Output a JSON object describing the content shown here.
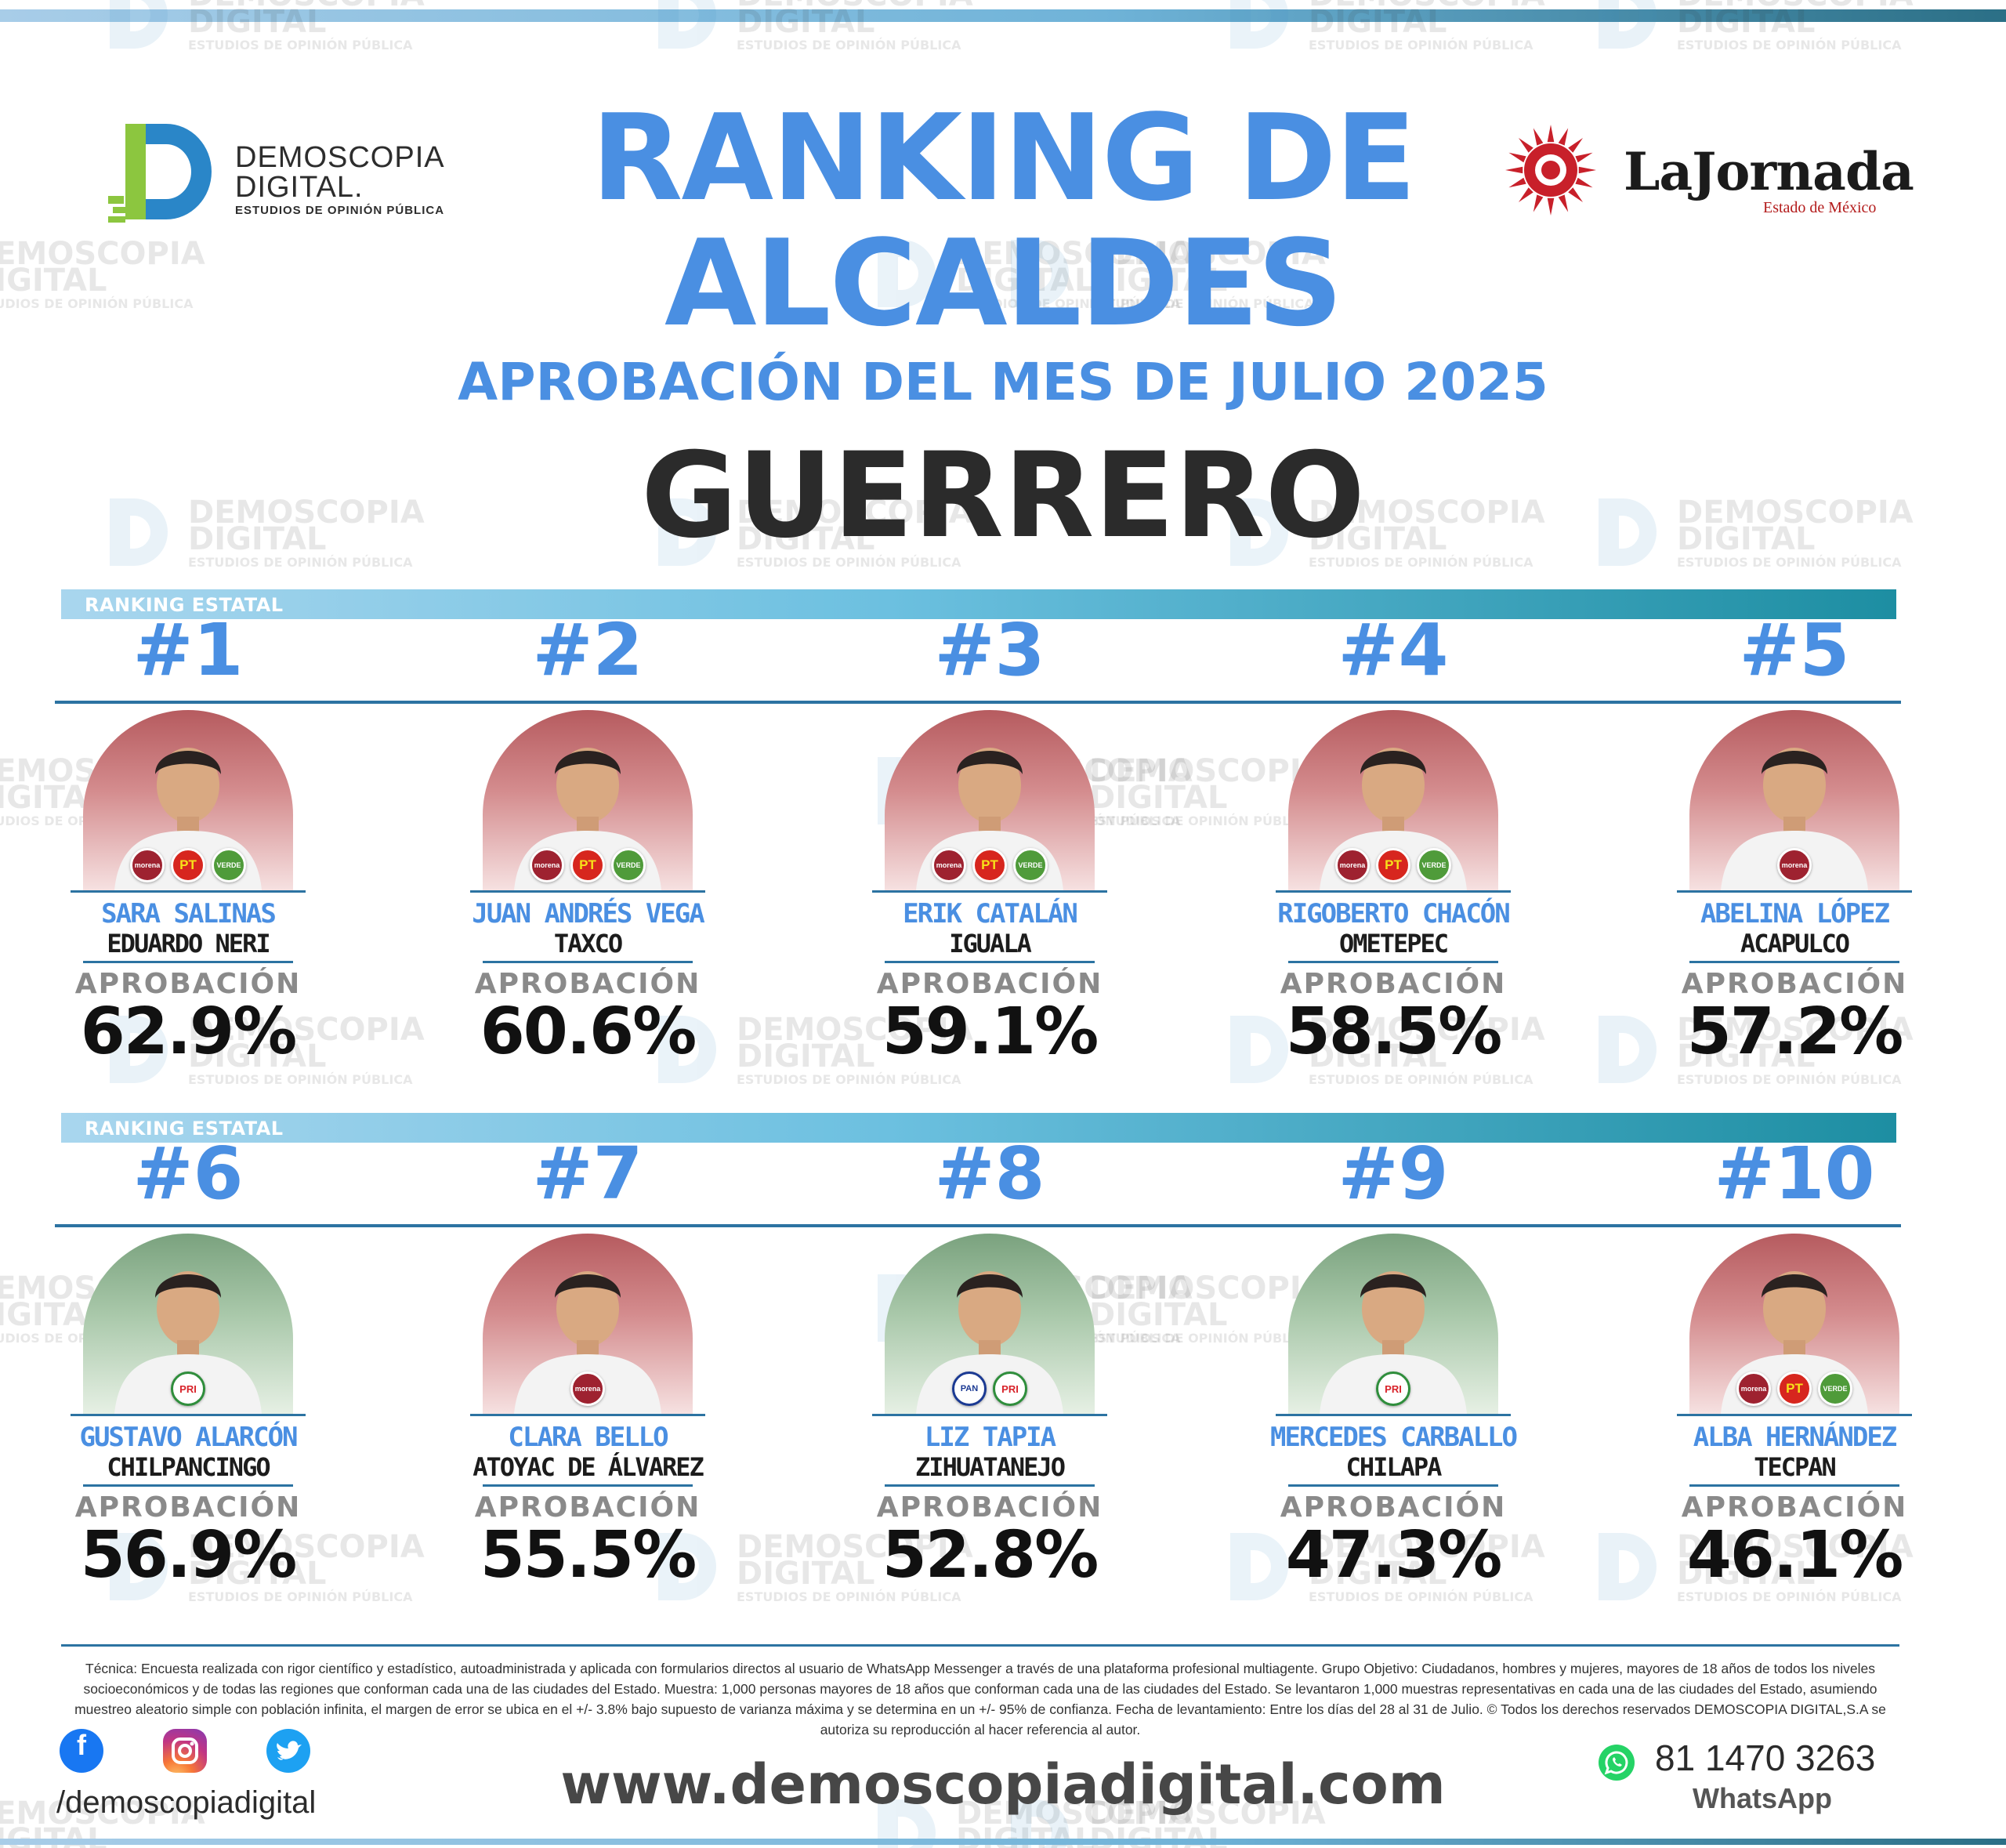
{
  "header": {
    "title_line1": "RANKING DE",
    "title_line2": "ALCALDES",
    "subtitle": "APROBACIÓN DEL MES DE JULIO 2025",
    "state": "GUERRERO"
  },
  "logos": {
    "demoscopia_line1": "DEMOSCOPIA",
    "demoscopia_line2": "DIGITAL.",
    "demoscopia_tagline": "ESTUDIOS DE OPINIÓN PÚBLICA",
    "jornada_name": "LaJornada",
    "jornada_sub": "Estado de México"
  },
  "watermark": {
    "line1": "DEMOSCOPIA",
    "line2": "DIGITAL",
    "line3": "ESTUDIOS DE OPINIÓN PÚBLICA"
  },
  "sections": [
    {
      "label": "RANKING ESTATAL"
    },
    {
      "label": "RANKING ESTATAL"
    }
  ],
  "approval_label": "APROBACIÓN",
  "mayors": [
    {
      "rank": "#1",
      "name": "SARA SALINAS",
      "city": "EDUARDO NERI",
      "approval": "62.9%",
      "approval_value": 62.9,
      "bg": "red",
      "parties": [
        "morena",
        "PT",
        "VERDE"
      ]
    },
    {
      "rank": "#2",
      "name": "JUAN ANDRÉS VEGA",
      "city": "TAXCO",
      "approval": "60.6%",
      "approval_value": 60.6,
      "bg": "red",
      "parties": [
        "morena",
        "PT",
        "VERDE"
      ]
    },
    {
      "rank": "#3",
      "name": "ERIK CATALÁN",
      "city": "IGUALA",
      "approval": "59.1%",
      "approval_value": 59.1,
      "bg": "red",
      "parties": [
        "morena",
        "PT",
        "VERDE"
      ]
    },
    {
      "rank": "#4",
      "name": "RIGOBERTO CHACÓN",
      "city": "OMETEPEC",
      "approval": "58.5%",
      "approval_value": 58.5,
      "bg": "red",
      "parties": [
        "morena",
        "PT",
        "VERDE"
      ]
    },
    {
      "rank": "#5",
      "name": "ABELINA LÓPEZ",
      "city": "ACAPULCO",
      "approval": "57.2%",
      "approval_value": 57.2,
      "bg": "red",
      "parties": [
        "morena"
      ]
    },
    {
      "rank": "#6",
      "name": "GUSTAVO ALARCÓN",
      "city": "CHILPANCINGO",
      "approval": "56.9%",
      "approval_value": 56.9,
      "bg": "green",
      "parties": [
        "PRI"
      ]
    },
    {
      "rank": "#7",
      "name": "CLARA BELLO",
      "city": "ATOYAC DE ÁLVAREZ",
      "approval": "55.5%",
      "approval_value": 55.5,
      "bg": "red",
      "parties": [
        "morena"
      ]
    },
    {
      "rank": "#8",
      "name": "LIZ TAPIA",
      "city": "ZIHUATANEJO",
      "approval": "52.8%",
      "approval_value": 52.8,
      "bg": "green",
      "parties": [
        "PAN",
        "PRI"
      ]
    },
    {
      "rank": "#9",
      "name": "MERCEDES CARBALLO",
      "city": "CHILAPA",
      "approval": "47.3%",
      "approval_value": 47.3,
      "bg": "green",
      "parties": [
        "PRI"
      ]
    },
    {
      "rank": "#10",
      "name": "ALBA HERNÁNDEZ",
      "city": "TECPAN",
      "approval": "46.1%",
      "approval_value": 46.1,
      "bg": "red",
      "parties": [
        "morena",
        "PT",
        "VERDE"
      ]
    }
  ],
  "footer": {
    "technique": "Técnica: Encuesta realizada con rigor científico y estadístico, autoadministrada y aplicada con formularios directos al usuario de WhatsApp Messenger a través de una plataforma profesional multiagente. Grupo Objetivo: Ciudadanos, hombres y mujeres, mayores de 18 años de todos los niveles socioeconómicos y de todas las regiones que conforman cada una de las ciudades del Estado. Muestra: 1,000 personas mayores de 18 años que conforman cada una de las ciudades del Estado. Se levantaron 1,000 muestras representativas en cada una de las ciudades del Estado, asumiendo muestreo aleatorio simple con población infinita, el margen de error se ubica en el +/- 3.8% bajo supuesto de varianza máxima y se determina en un +/- 95% de confianza. Fecha de levantamiento: Entre los días del 28 al 31 de Julio. © Todos los derechos reservados DEMOSCOPIA DIGITAL,S.A se autoriza su reproducción al hacer referencia al autor.",
    "social_handle": "/demoscopiadigital",
    "website": "www.demoscopiadigital.com",
    "phone": "81 1470 3263",
    "phone_label": "WhatsApp",
    "icons": [
      "facebook-icon",
      "instagram-icon",
      "twitter-icon",
      "whatsapp-icon"
    ]
  }
}
